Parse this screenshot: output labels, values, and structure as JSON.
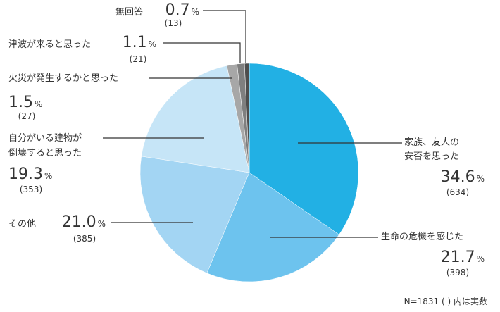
{
  "chart_data": {
    "type": "pie",
    "slices": [
      {
        "label": [
          "家族、友人の",
          "安否を思った"
        ],
        "value": 34.6,
        "count": "(634)",
        "color": "#22b0e4"
      },
      {
        "label": [
          "生命の危機を感じた"
        ],
        "value": 21.7,
        "count": "(398)",
        "color": "#6dc3ee"
      },
      {
        "label": [
          "その他"
        ],
        "value": 21.0,
        "count": "(385)",
        "color": "#a3d5f3"
      },
      {
        "label": [
          "自分がいる建物が",
          "倒壊すると思った"
        ],
        "value": 19.3,
        "count": "(353)",
        "color": "#c6e5f7"
      },
      {
        "label": [
          "火災が発生するかと思った"
        ],
        "value": 1.5,
        "count": "(27)",
        "color": "#a7a7a7"
      },
      {
        "label": [
          "津波が来ると思った"
        ],
        "value": 1.1,
        "count": "(21)",
        "color": "#7f7f7f"
      },
      {
        "label": [
          "無回答"
        ],
        "value": 0.7,
        "count": "(13)",
        "color": "#4d4d4d"
      }
    ],
    "unit": "%",
    "start_angle_deg": 0,
    "direction": "clockwise"
  },
  "footnote": "N=1831 ( ) 内は実数"
}
